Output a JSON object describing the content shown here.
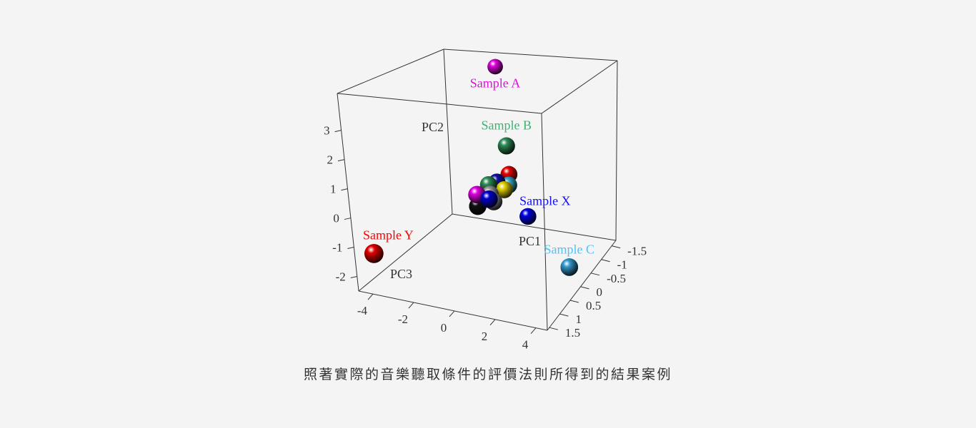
{
  "caption": "照著實際的音樂聽取條件的評價法則所得到的結果案例",
  "chart_data": {
    "type": "scatter",
    "projection": "3d",
    "title": "",
    "axes": {
      "x": {
        "label": "PC1",
        "range": [
          -1.7,
          1.6
        ],
        "ticks": [
          -1.5,
          -1,
          -0.5,
          0,
          0.5,
          1,
          1.5
        ],
        "tick_labels": [
          "-1.5",
          "-1",
          "-0.5",
          "0",
          "0.5",
          "1",
          "1.5"
        ]
      },
      "y": {
        "label": "PC2",
        "range": [
          -2.5,
          4.26
        ],
        "ticks": [
          -2,
          -1,
          0,
          1,
          2,
          3
        ],
        "tick_labels": [
          "-2",
          "-1",
          "0",
          "1",
          "2",
          "3"
        ]
      },
      "z": {
        "label": "PC3",
        "range": [
          -4.7,
          4.56
        ],
        "ticks": [
          -4,
          -2,
          0,
          2,
          4
        ],
        "tick_labels": [
          "-4",
          "-2",
          "0",
          "2",
          "4"
        ]
      }
    },
    "grid": false,
    "legend": "none",
    "points": [
      {
        "label": "Sample A",
        "x": -1.37,
        "y": 3.92,
        "z": -1.46,
        "color": "#e000e0",
        "label_color": "#e010e0"
      },
      {
        "label": "Sample B",
        "x": -0.05,
        "y": 1.96,
        "z": 0.86,
        "color": "#2e8b57",
        "label_color": "#3cb371"
      },
      {
        "label": "Sample X",
        "x": -0.38,
        "y": -0.74,
        "z": 1.41,
        "color": "#0000e0",
        "label_color": "#1010ff"
      },
      {
        "label": "Sample Y",
        "x": 1.4,
        "y": -1.28,
        "z": -4.05,
        "color": "#e00000",
        "label_color": "#ff0000"
      },
      {
        "label": "Sample C",
        "x": 0.28,
        "y": -1.62,
        "z": 4.3,
        "color": "#3399cc",
        "label_color": "#4fc3f7"
      },
      {
        "label": "",
        "x": -0.3,
        "y": 0.75,
        "z": 0.6,
        "color": "#e00000"
      },
      {
        "label": "",
        "x": -0.2,
        "y": 0.45,
        "z": 0.7,
        "color": "#33aacc"
      },
      {
        "label": "",
        "x": -0.1,
        "y": 0.35,
        "z": 0.6,
        "color": "#e0d000"
      },
      {
        "label": "",
        "x": -0.1,
        "y": 0.45,
        "z": -0.2,
        "color": "#2e8b57"
      },
      {
        "label": "",
        "x": -0.2,
        "y": 0.5,
        "z": 0.1,
        "color": "#1010a0"
      },
      {
        "label": "",
        "x": 0.0,
        "y": 0.2,
        "z": 0.0,
        "color": "#999999"
      },
      {
        "label": "",
        "x": 0.1,
        "y": 0.05,
        "z": 0.3,
        "color": "#888888"
      },
      {
        "label": "",
        "x": 0.2,
        "y": 0.3,
        "z": -0.4,
        "color": "#e000e0"
      },
      {
        "label": "",
        "x": 0.2,
        "y": 0.2,
        "z": 0.2,
        "color": "#0000cc"
      },
      {
        "label": "",
        "x": 0.1,
        "y": -0.2,
        "z": -0.53,
        "color": "#111111"
      }
    ]
  }
}
